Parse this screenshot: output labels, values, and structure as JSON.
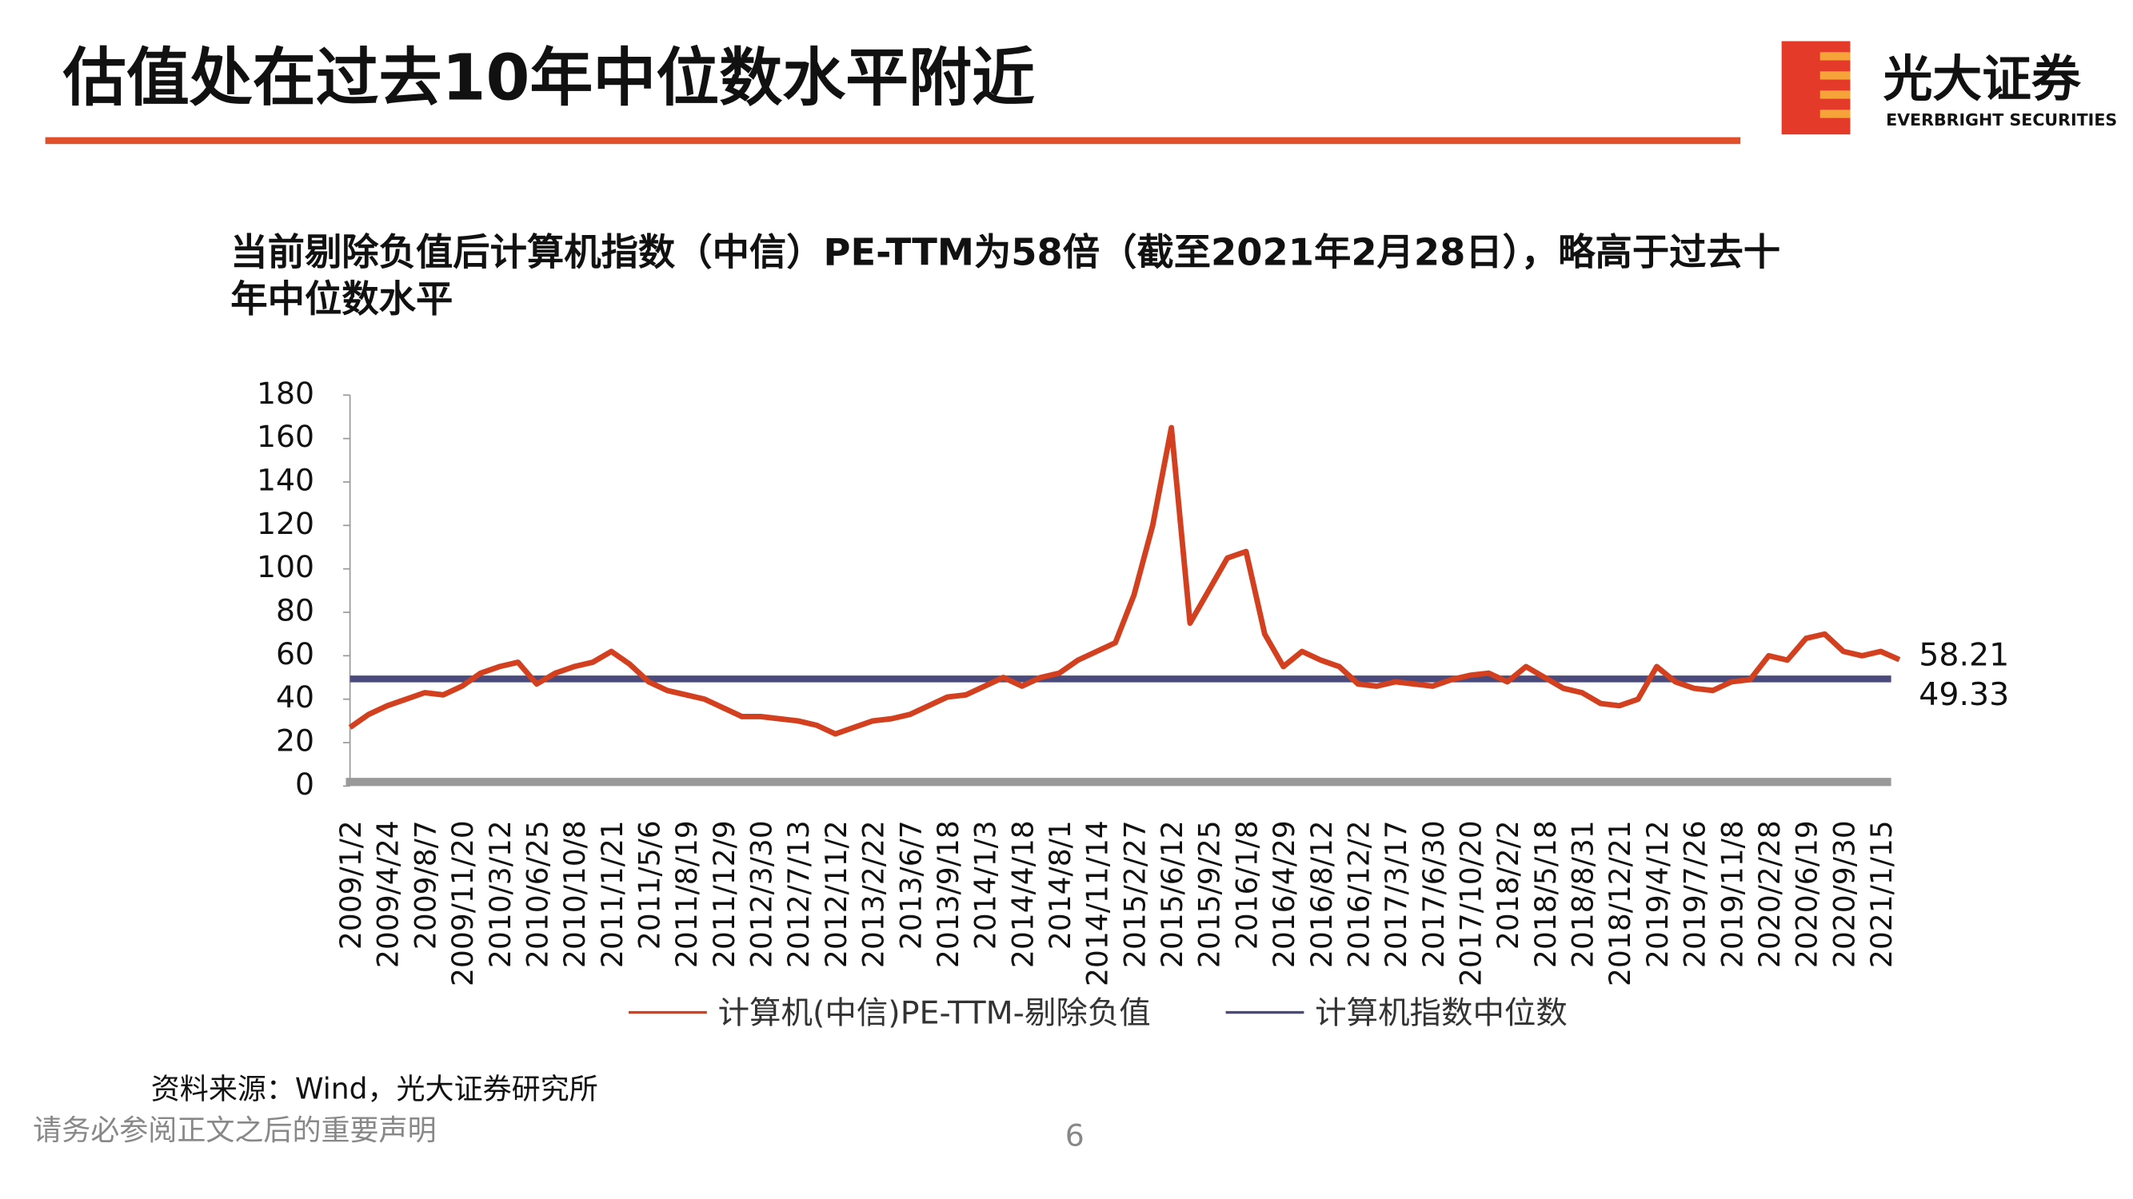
{
  "header": {
    "title": "估值处在过去10年中位数水平附近",
    "logo_cn": "光大证券",
    "logo_en": "EVERBRIGHT SECURITIES"
  },
  "chart_data": {
    "type": "line",
    "subtitle_lines": [
      "当前剔除负值后计算机指数（中信）PE-TTM为58倍（截至2021年2月28日），略高于过去十",
      "年中位数水平"
    ],
    "categories": [
      "2009/1/2",
      null,
      "2009/4/24",
      null,
      "2009/8/7",
      null,
      "2009/11/20",
      null,
      "2010/3/12",
      null,
      "2010/6/25",
      null,
      "2010/10/8",
      null,
      "2011/1/21",
      null,
      "2011/5/6",
      null,
      "2011/8/19",
      null,
      "2011/12/9",
      null,
      "2012/3/30",
      null,
      "2012/7/13",
      null,
      "2012/11/2",
      null,
      "2013/2/22",
      null,
      "2013/6/7",
      null,
      "2013/9/18",
      null,
      "2014/1/3",
      null,
      "2014/4/18",
      null,
      "2014/8/1",
      null,
      "2014/11/14",
      null,
      "2015/2/27",
      null,
      "2015/6/12",
      null,
      "2015/9/25",
      null,
      "2016/1/8",
      null,
      "2016/4/29",
      null,
      "2016/8/12",
      null,
      "2016/12/2",
      null,
      "2017/3/17",
      null,
      "2017/6/30",
      null,
      "2017/10/20",
      null,
      "2018/2/2",
      null,
      "2018/5/18",
      null,
      "2018/8/31",
      null,
      "2018/12/21",
      null,
      "2019/4/12",
      null,
      "2019/7/26",
      null,
      "2019/11/8",
      null,
      "2020/2/28",
      null,
      "2020/6/19",
      null,
      "2020/9/30",
      null,
      "2021/1/15",
      null
    ],
    "series": [
      {
        "name": "计算机(中信)PE-TTM-剔除负值",
        "color": "#d2401f",
        "values": [
          27,
          33,
          37,
          40,
          43,
          42,
          46,
          52,
          55,
          57,
          47,
          52,
          55,
          57,
          62,
          56,
          48,
          44,
          42,
          40,
          36,
          32,
          32,
          31,
          30,
          28,
          24,
          27,
          30,
          31,
          33,
          37,
          41,
          42,
          46,
          50,
          46,
          50,
          52,
          58,
          62,
          66,
          88,
          120,
          165,
          75,
          90,
          105,
          108,
          70,
          55,
          62,
          58,
          55,
          47,
          46,
          48,
          47,
          46,
          49,
          51,
          52,
          48,
          55,
          50,
          45,
          43,
          38,
          37,
          40,
          55,
          48,
          45,
          44,
          48,
          49,
          60,
          58,
          68,
          70,
          62,
          60,
          62,
          58.21
        ]
      }
    ],
    "reference_line": {
      "name": "计算机指数中位数",
      "value": 49.33,
      "color": "#4a4a7c"
    },
    "ylim": [
      0,
      180
    ],
    "yticks": [
      0,
      20,
      40,
      60,
      80,
      100,
      120,
      140,
      160,
      180
    ]
  },
  "footer": {
    "source": "资料来源：Wind，光大证券研究所",
    "disclaimer": "请务必参阅正文之后的重要声明",
    "page": "6"
  }
}
